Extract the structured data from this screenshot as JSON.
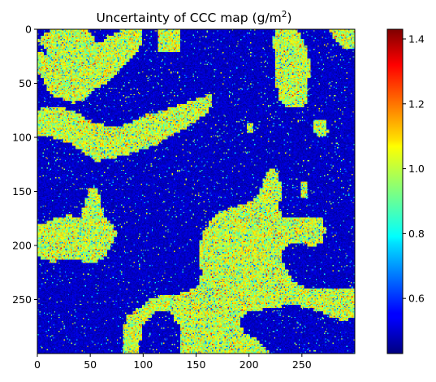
{
  "chart_data": {
    "type": "heatmap",
    "title": "Uncertainty of CCC map (g/m",
    "title_superscript": "2",
    "title_close": ")",
    "colormap": "jet",
    "grid_size": [
      300,
      300
    ],
    "x_ticks": [
      "0",
      "50",
      "100",
      "150",
      "200",
      "250"
    ],
    "y_ticks": [
      "0",
      "50",
      "100",
      "150",
      "200",
      "250"
    ],
    "x_tick_values": [
      0,
      50,
      100,
      150,
      200,
      250
    ],
    "y_tick_values": [
      0,
      50,
      100,
      150,
      200,
      250
    ],
    "xlim": [
      0,
      300
    ],
    "ylim": [
      300,
      0
    ],
    "colorbar": {
      "min": 0.43,
      "max": 1.43,
      "ticks": [
        "0.6",
        "0.8",
        "1.0",
        "1.2",
        "1.4"
      ],
      "tick_values": [
        0.6,
        0.8,
        1.0,
        1.2,
        1.4
      ]
    },
    "value_levels": {
      "background_approx": 0.5,
      "patch_approx": 1.0
    },
    "high_uncertainty_regions": [
      {
        "name": "top-left patch",
        "cells": [
          [
            0,
            10
          ],
          [
            8,
            20
          ],
          [
            18,
            35
          ],
          [
            25,
            40
          ],
          [
            35,
            40
          ],
          [
            40,
            38
          ],
          [
            45,
            30
          ],
          [
            50,
            22
          ],
          [
            55,
            10
          ],
          [
            50,
            2
          ],
          [
            40,
            0
          ],
          [
            20,
            0
          ],
          [
            8,
            2
          ]
        ],
        "coords": "x,y"
      },
      {
        "name": "top-center patch",
        "polygon": [
          [
            0,
            20
          ],
          [
            0,
            40
          ],
          [
            5,
            45
          ],
          [
            10,
            55
          ],
          [
            15,
            62
          ],
          [
            25,
            65
          ],
          [
            35,
            68
          ],
          [
            45,
            65
          ],
          [
            55,
            55
          ],
          [
            65,
            50
          ],
          [
            75,
            40
          ],
          [
            85,
            30
          ],
          [
            95,
            20
          ],
          [
            100,
            10
          ],
          [
            100,
            0
          ],
          [
            80,
            0
          ],
          [
            70,
            5
          ],
          [
            60,
            12
          ],
          [
            50,
            15
          ],
          [
            35,
            20
          ],
          [
            20,
            20
          ],
          [
            10,
            25
          ]
        ]
      },
      {
        "name": "top-small square",
        "polygon": [
          [
            115,
            0
          ],
          [
            135,
            0
          ],
          [
            135,
            20
          ],
          [
            115,
            20
          ]
        ]
      },
      {
        "name": "top-right patch",
        "polygon": [
          [
            225,
            0
          ],
          [
            245,
            0
          ],
          [
            250,
            8
          ],
          [
            255,
            20
          ],
          [
            258,
            35
          ],
          [
            255,
            55
          ],
          [
            255,
            70
          ],
          [
            245,
            72
          ],
          [
            235,
            72
          ],
          [
            228,
            65
          ],
          [
            225,
            45
          ],
          [
            225,
            25
          ],
          [
            222,
            10
          ]
        ]
      },
      {
        "name": "right small blob",
        "polygon": [
          [
            262,
            85
          ],
          [
            272,
            85
          ],
          [
            275,
            95
          ],
          [
            268,
            100
          ],
          [
            262,
            95
          ]
        ]
      },
      {
        "name": "center small blob",
        "polygon": [
          [
            198,
            88
          ],
          [
            205,
            88
          ],
          [
            205,
            97
          ],
          [
            198,
            97
          ]
        ]
      },
      {
        "name": "top-right corner",
        "polygon": [
          [
            275,
            0
          ],
          [
            300,
            0
          ],
          [
            300,
            18
          ],
          [
            290,
            18
          ],
          [
            282,
            12
          ]
        ]
      },
      {
        "name": "left band patch",
        "polygon": [
          [
            0,
            75
          ],
          [
            5,
            72
          ],
          [
            20,
            72
          ],
          [
            35,
            75
          ],
          [
            50,
            85
          ],
          [
            70,
            90
          ],
          [
            85,
            88
          ],
          [
            100,
            80
          ],
          [
            120,
            75
          ],
          [
            140,
            68
          ],
          [
            155,
            62
          ],
          [
            165,
            60
          ],
          [
            165,
            70
          ],
          [
            160,
            78
          ],
          [
            150,
            85
          ],
          [
            140,
            92
          ],
          [
            125,
            100
          ],
          [
            110,
            108
          ],
          [
            90,
            115
          ],
          [
            70,
            120
          ],
          [
            55,
            122
          ],
          [
            40,
            112
          ],
          [
            30,
            105
          ],
          [
            15,
            100
          ],
          [
            0,
            100
          ]
        ]
      },
      {
        "name": "left-bottom patch",
        "polygon": [
          [
            0,
            182
          ],
          [
            15,
            175
          ],
          [
            30,
            172
          ],
          [
            40,
            175
          ],
          [
            45,
            162
          ],
          [
            48,
            148
          ],
          [
            55,
            145
          ],
          [
            60,
            155
          ],
          [
            62,
            170
          ],
          [
            70,
            180
          ],
          [
            75,
            190
          ],
          [
            70,
            200
          ],
          [
            65,
            210
          ],
          [
            55,
            215
          ],
          [
            45,
            215
          ],
          [
            30,
            212
          ],
          [
            15,
            215
          ],
          [
            0,
            210
          ]
        ]
      },
      {
        "name": "right small blob 2",
        "polygon": [
          [
            248,
            142
          ],
          [
            256,
            142
          ],
          [
            256,
            155
          ],
          [
            248,
            155
          ]
        ]
      },
      {
        "name": "bottom-center large patch",
        "polygon": [
          [
            80,
            300
          ],
          [
            80,
            280
          ],
          [
            85,
            265
          ],
          [
            100,
            255
          ],
          [
            110,
            248
          ],
          [
            130,
            246
          ],
          [
            150,
            240
          ],
          [
            155,
            225
          ],
          [
            152,
            200
          ],
          [
            158,
            185
          ],
          [
            170,
            170
          ],
          [
            185,
            165
          ],
          [
            200,
            160
          ],
          [
            210,
            150
          ],
          [
            215,
            135
          ],
          [
            222,
            128
          ],
          [
            228,
            135
          ],
          [
            232,
            150
          ],
          [
            228,
            165
          ],
          [
            232,
            175
          ],
          [
            245,
            175
          ],
          [
            270,
            175
          ],
          [
            272,
            185
          ],
          [
            270,
            198
          ],
          [
            260,
            200
          ],
          [
            240,
            198
          ],
          [
            232,
            205
          ],
          [
            232,
            215
          ],
          [
            240,
            232
          ],
          [
            255,
            240
          ],
          [
            275,
            240
          ],
          [
            300,
            240
          ],
          [
            300,
            265
          ],
          [
            290,
            270
          ],
          [
            275,
            265
          ],
          [
            258,
            258
          ],
          [
            240,
            255
          ],
          [
            220,
            258
          ],
          [
            200,
            262
          ],
          [
            190,
            270
          ],
          [
            195,
            280
          ],
          [
            212,
            290
          ],
          [
            222,
            300
          ],
          [
            135,
            300
          ],
          [
            135,
            275
          ],
          [
            125,
            262
          ],
          [
            110,
            262
          ],
          [
            100,
            275
          ],
          [
            95,
            300
          ]
        ]
      }
    ]
  }
}
